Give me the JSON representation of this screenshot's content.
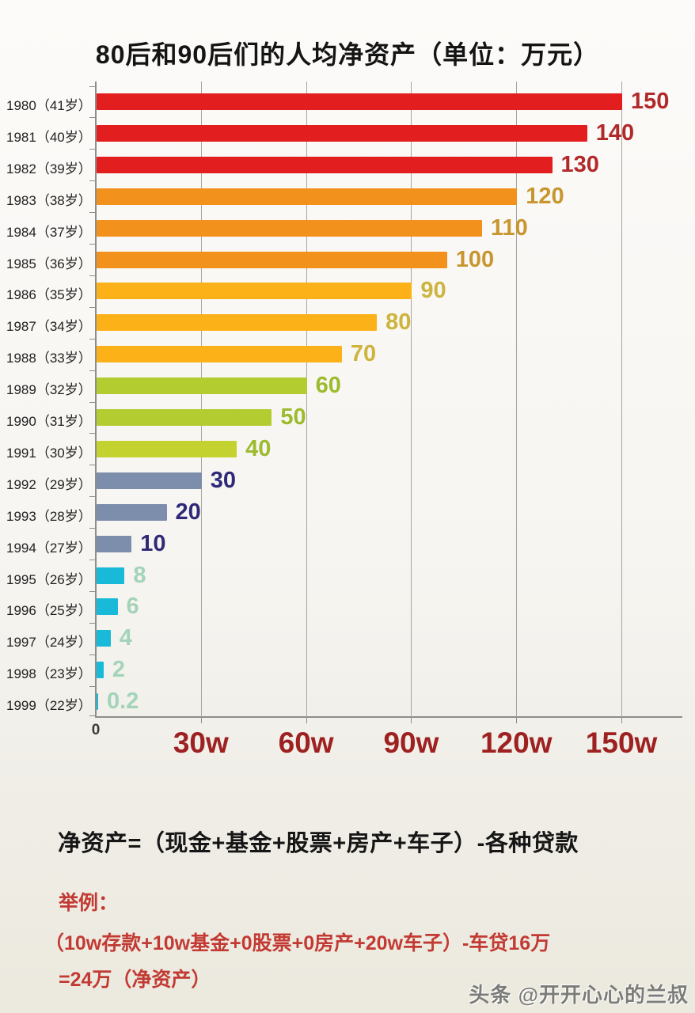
{
  "title": "80后和90后们的人均净资产（单位：万元）",
  "chart_data": {
    "type": "bar",
    "orientation": "horizontal",
    "title": "80后和90后们的人均净资产（单位：万元）",
    "unit": "万元",
    "xlim": [
      0,
      150
    ],
    "grid": true,
    "x_ticks": [
      {
        "label": "0",
        "value": 0
      },
      {
        "label": "30w",
        "value": 30
      },
      {
        "label": "60w",
        "value": 60
      },
      {
        "label": "90w",
        "value": 90
      },
      {
        "label": "120w",
        "value": 120
      },
      {
        "label": "150w",
        "value": 150
      }
    ],
    "categories": [
      "1980（41岁）",
      "1981（40岁）",
      "1982（39岁）",
      "1983（38岁）",
      "1984（37岁）",
      "1985（36岁）",
      "1986（35岁）",
      "1987（34岁）",
      "1988（33岁）",
      "1989（32岁）",
      "1990（31岁）",
      "1991（30岁）",
      "1992（29岁）",
      "1993（28岁）",
      "1994（27岁）",
      "1995（26岁）",
      "1996（25岁）",
      "1997（24岁）",
      "1998（23岁）",
      "1999（22岁）"
    ],
    "values": [
      150,
      140,
      130,
      120,
      110,
      100,
      90,
      80,
      70,
      60,
      50,
      40,
      30,
      20,
      10,
      8,
      6,
      4,
      2,
      0.2
    ],
    "value_labels": [
      "150",
      "140",
      "130",
      "120",
      "110",
      "100",
      "90",
      "80",
      "70",
      "60",
      "50",
      "40",
      "30",
      "20",
      "10",
      "8",
      "6",
      "4",
      "2",
      "0.2"
    ],
    "bar_colors": [
      "#e31e1e",
      "#e31e1e",
      "#e31e1e",
      "#f2921d",
      "#f2921d",
      "#f2921d",
      "#fbb117",
      "#fbb117",
      "#fbb117",
      "#b3cc30",
      "#b3cc30",
      "#c3d22e",
      "#7d8dac",
      "#7d8dac",
      "#7d8dac",
      "#19bad9",
      "#19bad9",
      "#19bad9",
      "#19bad9",
      "#19bad9"
    ],
    "value_label_colors": [
      "#b22929",
      "#b22929",
      "#b22929",
      "#c8962f",
      "#c8962f",
      "#c8962f",
      "#cdb43c",
      "#cdb43c",
      "#cdb43c",
      "#9cbb2d",
      "#9cbb2d",
      "#9cbb2d",
      "#2e2a77",
      "#2e2a77",
      "#2e2a77",
      "#a3d3b9",
      "#a3d3b9",
      "#a3d3b9",
      "#a3d3b9",
      "#a3d3b9"
    ],
    "axis_tick_label_color": "#9e2121"
  },
  "footer": {
    "formula": "净资产=（现金+基金+股票+房产+车子）-各种贷款",
    "example_label": "举例：",
    "example_line1": "（10w存款+10w基金+0股票+0房产+20w车子）-车贷16万",
    "example_line2": "=24万（净资产）"
  },
  "watermark": "头条 @开开心心的兰叔"
}
